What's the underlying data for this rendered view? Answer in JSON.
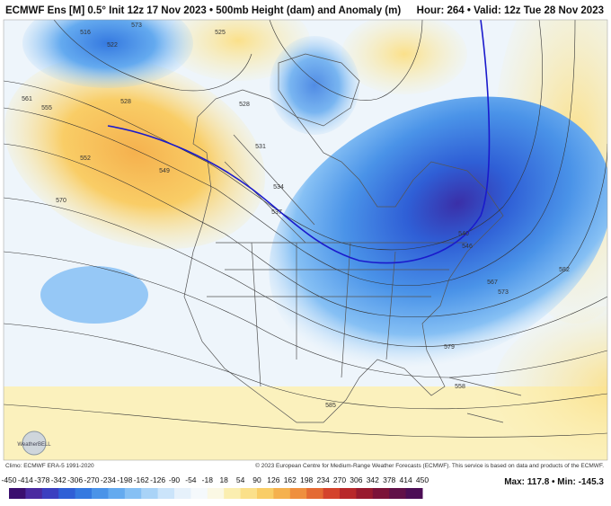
{
  "header": {
    "title": "ECMWF Ens [M] 0.5° Init 12z 17 Nov 2023 • 500mb Height (dam) and Anomaly (m)",
    "valid": "Hour: 264 • Valid: 12z Tue 28 Nov 2023"
  },
  "map": {
    "contour_labels": [
      516,
      522,
      528,
      573,
      525,
      528,
      531,
      534,
      537,
      540,
      546,
      549,
      552,
      555,
      561,
      567,
      570,
      573,
      579,
      582,
      585,
      558
    ],
    "logo": "WeatherBELL"
  },
  "footer": {
    "climo": "Climo: ECMWF ERA-5 1991-2020",
    "credit": "© 2023 European Centre for Medium-Range Weather Forecasts (ECMWF). This service is based on data and products of the ECMWF."
  },
  "colorbar": {
    "ticks": [
      -450,
      -414,
      -378,
      -342,
      -306,
      -270,
      -234,
      -198,
      -162,
      -126,
      -90,
      -54,
      -18,
      18,
      54,
      90,
      126,
      162,
      198,
      234,
      270,
      306,
      342,
      378,
      414,
      450
    ],
    "colors": [
      "#3b0f6f",
      "#4a2aa0",
      "#3b3fc0",
      "#2f5fd6",
      "#3579e0",
      "#4a93e8",
      "#64aaef",
      "#86c0f4",
      "#a9d3f7",
      "#cbe4fa",
      "#e6f1fb",
      "#f5f9fc",
      "#fbf8e4",
      "#fbeeb0",
      "#fbe08a",
      "#f9cd66",
      "#f5b14e",
      "#ef8f3e",
      "#e46a33",
      "#d4432c",
      "#b8282a",
      "#981a2e",
      "#7c1238",
      "#611048",
      "#4c0e55"
    ],
    "stats": "Max: 117.8 • Min: -145.3"
  }
}
